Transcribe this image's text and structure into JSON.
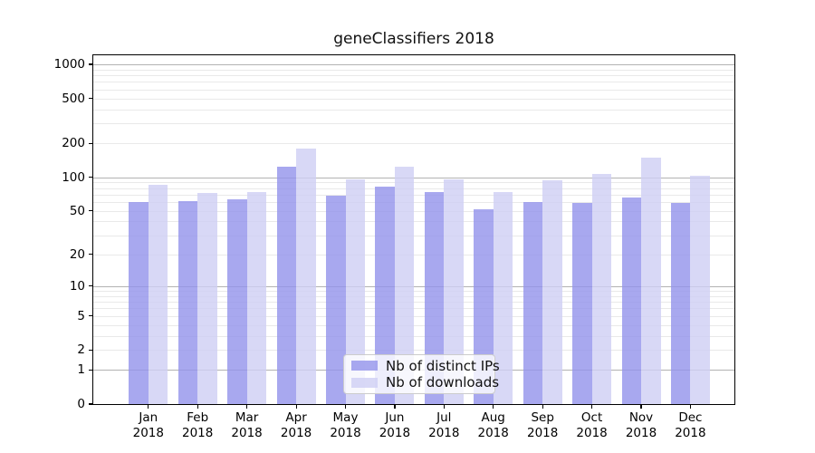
{
  "title": "geneClassifiers 2018",
  "colors": {
    "ips_bar": "rgba(146,146,235,0.8)",
    "downloads_bar": "rgba(206,206,244,0.8)",
    "major_grid": "#b2b2b2",
    "minor_grid": "#e9e9e9",
    "spine": "#000000",
    "legend_border": "#cccccc",
    "legend_bg": "rgba(255,255,255,0.8)"
  },
  "axes": {
    "y_tick_labels": [
      "0",
      "1",
      "2",
      "5",
      "10",
      "20",
      "50",
      "100",
      "200",
      "500",
      "1000"
    ],
    "y_tick_values": [
      0,
      1,
      2,
      5,
      10,
      20,
      50,
      100,
      200,
      500,
      1000
    ],
    "x_tick_months": [
      "Jan",
      "Feb",
      "Mar",
      "Apr",
      "May",
      "Jun",
      "Jul",
      "Aug",
      "Sep",
      "Oct",
      "Nov",
      "Dec"
    ],
    "x_tick_year": "2018"
  },
  "chart_data": {
    "type": "bar",
    "title": "geneClassifiers 2018",
    "y_scale": "symlog (y proportional to ln(1+v))",
    "ylim": [
      0,
      1200
    ],
    "grid": true,
    "legend_position": "lower center",
    "categories": [
      "Jan 2018",
      "Feb 2018",
      "Mar 2018",
      "Apr 2018",
      "May 2018",
      "Jun 2018",
      "Jul 2018",
      "Aug 2018",
      "Sep 2018",
      "Oct 2018",
      "Nov 2018",
      "Dec 2018"
    ],
    "series": [
      {
        "name": "Nb of distinct IPs",
        "values": [
          60,
          61,
          63,
          125,
          68,
          83,
          74,
          52,
          60,
          59,
          66,
          59
        ]
      },
      {
        "name": "Nb of downloads",
        "values": [
          86,
          72,
          74,
          178,
          95,
          124,
          95,
          73,
          94,
          107,
          148,
          102
        ]
      }
    ],
    "y_major_gridlines": [
      1,
      10,
      100,
      1000
    ],
    "y_minor_gridlines": [
      2,
      3,
      4,
      5,
      6,
      7,
      8,
      9,
      20,
      30,
      40,
      50,
      60,
      70,
      80,
      90,
      200,
      300,
      400,
      500,
      600,
      700,
      800,
      900
    ]
  }
}
